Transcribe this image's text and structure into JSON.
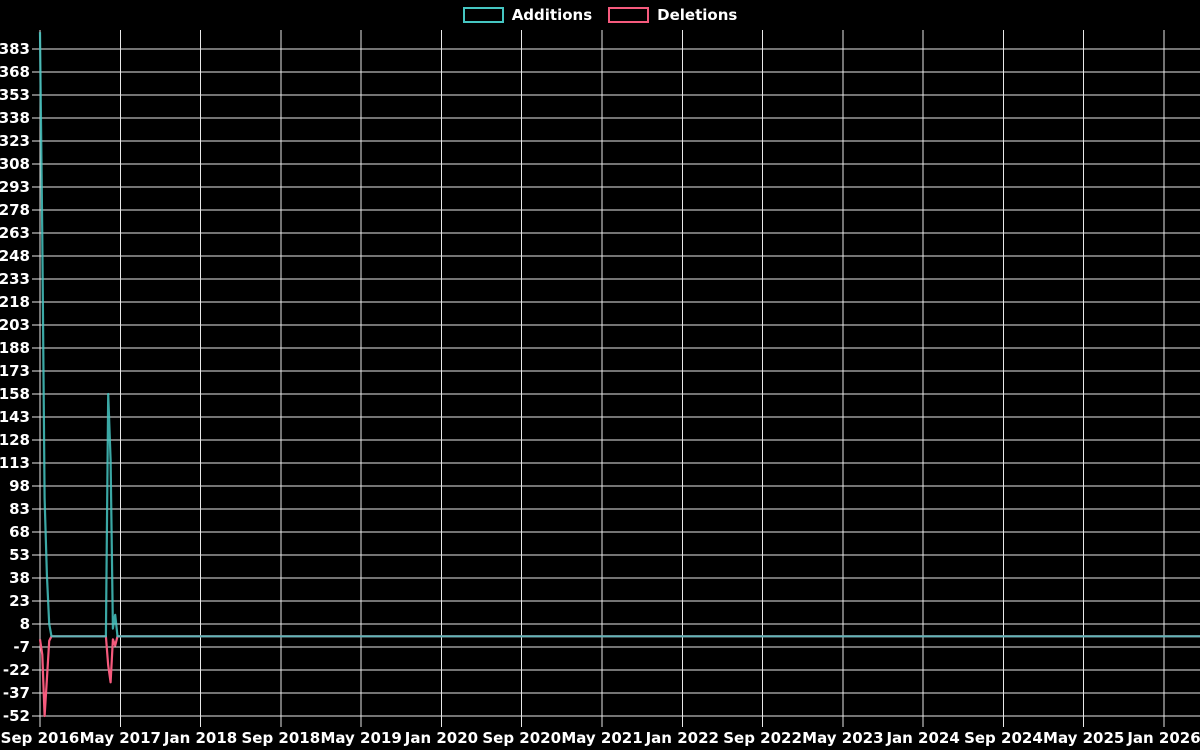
{
  "chart_data": {
    "type": "line",
    "title": "",
    "xlabel": "",
    "ylabel": "",
    "grid": true,
    "background": "#000000",
    "grid_color": "#e8e8e8",
    "text_color": "#ffffff",
    "legend_position": "top-center",
    "x_unit": "months since Sep 2016",
    "xlim_months": [
      0,
      115.6
    ],
    "ylim": [
      -56,
      395
    ],
    "y_ticks": [
      383,
      368,
      353,
      338,
      323,
      308,
      293,
      278,
      263,
      248,
      233,
      218,
      203,
      188,
      173,
      158,
      143,
      128,
      113,
      98,
      83,
      68,
      53,
      38,
      23,
      8,
      -7,
      -22,
      -37,
      -52
    ],
    "x_ticks": [
      {
        "m": 0,
        "label": "Sep 2016"
      },
      {
        "m": 8,
        "label": "May 2017"
      },
      {
        "m": 16,
        "label": "Jan 2018"
      },
      {
        "m": 24,
        "label": "Sep 2018"
      },
      {
        "m": 32,
        "label": "May 2019"
      },
      {
        "m": 40,
        "label": "Jan 2020"
      },
      {
        "m": 48,
        "label": "Sep 2020"
      },
      {
        "m": 56,
        "label": "May 2021"
      },
      {
        "m": 64,
        "label": "Jan 2022"
      },
      {
        "m": 72,
        "label": "Sep 2022"
      },
      {
        "m": 80,
        "label": "May 2023"
      },
      {
        "m": 88,
        "label": "Jan 2024"
      },
      {
        "m": 96,
        "label": "Sep 2024"
      },
      {
        "m": 104,
        "label": "May 2025"
      },
      {
        "m": 112,
        "label": "Jan 2026"
      }
    ],
    "series": [
      {
        "name": "Additions",
        "color": "#45c6c2",
        "points": [
          [
            0.0,
            394
          ],
          [
            0.23,
            260
          ],
          [
            0.46,
            90
          ],
          [
            0.69,
            40
          ],
          [
            0.92,
            8
          ],
          [
            1.15,
            0
          ],
          [
            6.57,
            0
          ],
          [
            6.8,
            158
          ],
          [
            7.03,
            115
          ],
          [
            7.26,
            5
          ],
          [
            7.49,
            14
          ],
          [
            7.72,
            0
          ],
          [
            115.6,
            0
          ]
        ]
      },
      {
        "name": "Deletions",
        "color": "#f65a7d",
        "points": [
          [
            0.0,
            -2
          ],
          [
            0.23,
            -12
          ],
          [
            0.46,
            -52
          ],
          [
            0.69,
            -28
          ],
          [
            0.92,
            -3
          ],
          [
            1.15,
            0
          ],
          [
            6.57,
            0
          ],
          [
            6.8,
            -19
          ],
          [
            7.03,
            -30
          ],
          [
            7.26,
            -2
          ],
          [
            7.49,
            -6
          ],
          [
            7.72,
            0
          ],
          [
            115.6,
            0
          ]
        ]
      }
    ]
  }
}
